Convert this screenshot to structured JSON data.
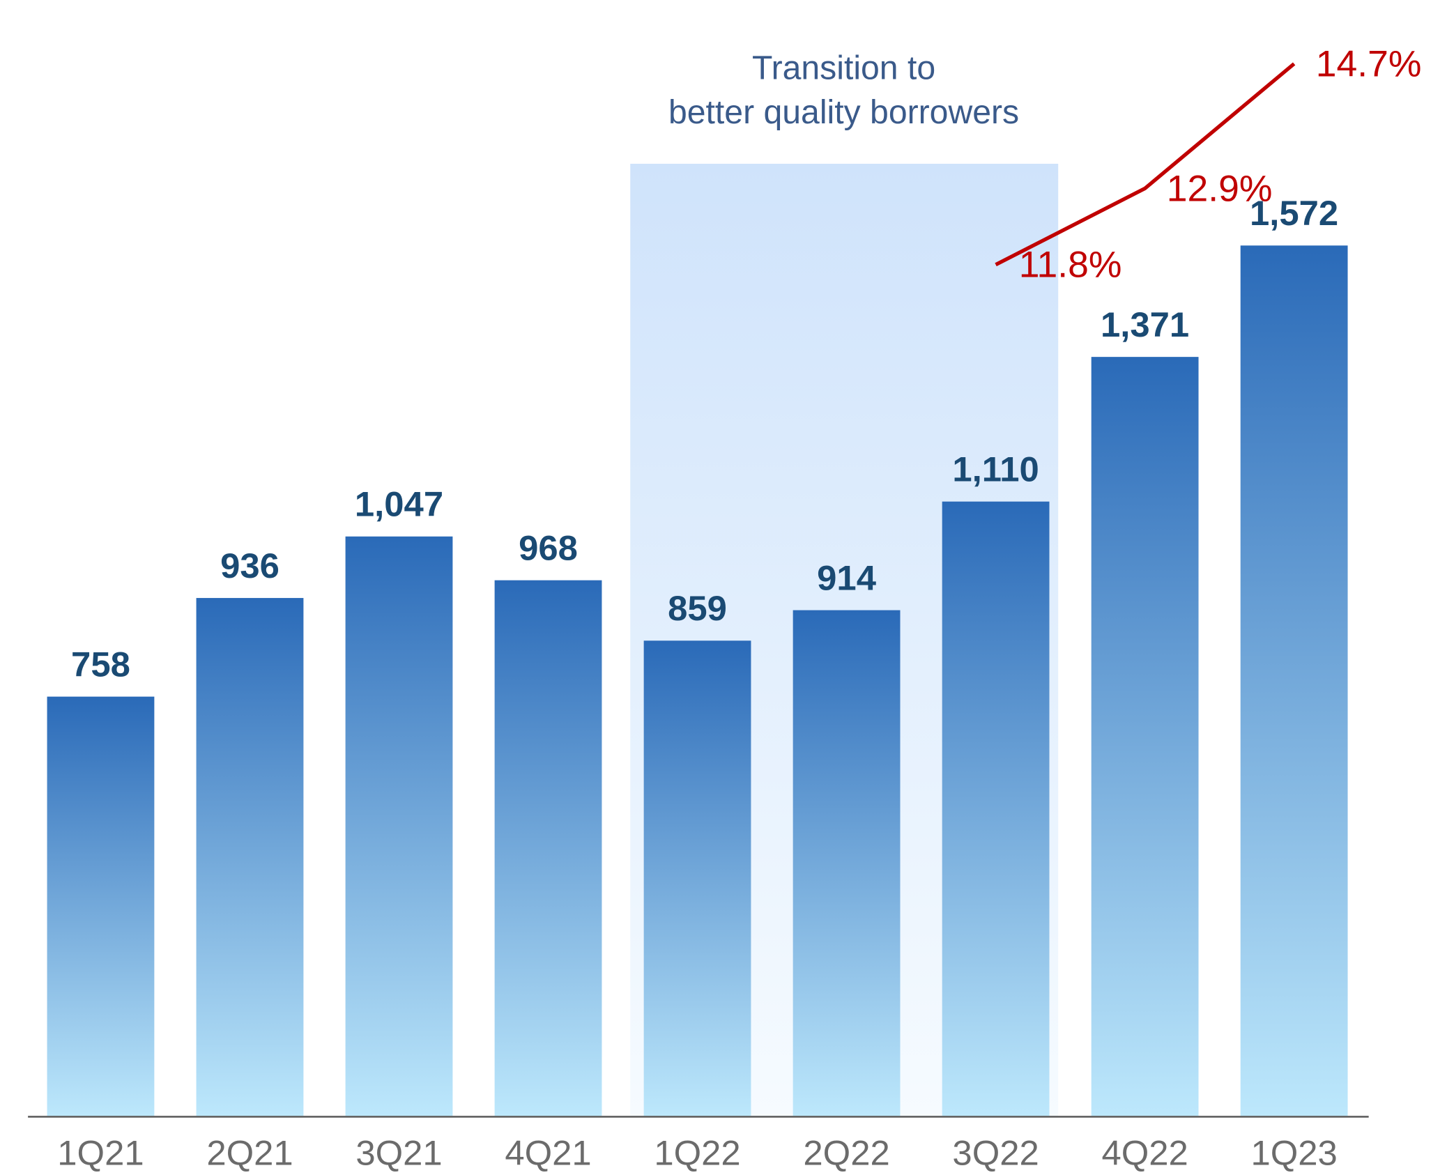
{
  "chart_data": {
    "type": "bar",
    "annotation": [
      "Transition to",
      "better quality borrowers"
    ],
    "categories": [
      "1Q21",
      "2Q21",
      "3Q21",
      "4Q21",
      "1Q22",
      "2Q22",
      "3Q22",
      "4Q22",
      "1Q23"
    ],
    "series": [
      {
        "name": null,
        "type": "bar",
        "color": "#2a6ab8",
        "values": [
          758,
          936,
          1047,
          968,
          859,
          914,
          1110,
          1371,
          1572
        ],
        "value_labels": [
          "758",
          "936",
          "1,047",
          "968",
          "859",
          "914",
          "1,110",
          "1,371",
          "1,572"
        ]
      },
      {
        "name": null,
        "type": "line",
        "axis": "y2",
        "color": "#c00000",
        "values": [
          null,
          null,
          null,
          null,
          null,
          null,
          11.8,
          12.9,
          14.7
        ],
        "value_labels": [
          null,
          null,
          null,
          null,
          null,
          null,
          "11.8%",
          "12.9%",
          "14.7%"
        ]
      }
    ],
    "ylim": [
      0,
      2000
    ],
    "y2lim": [
      -0.5,
      15.5
    ],
    "grid": false
  }
}
